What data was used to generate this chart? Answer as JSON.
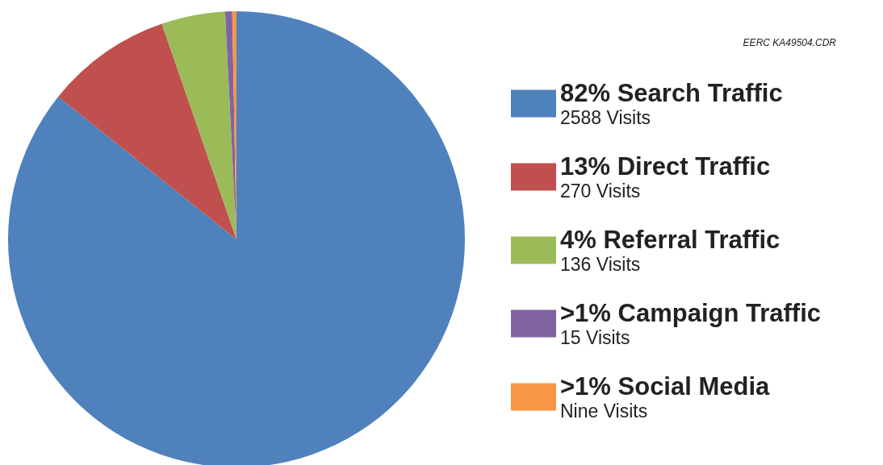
{
  "chart_data": {
    "type": "pie",
    "categories": [
      "82% Search Traffic",
      "13% Direct Traffic",
      "4% Referral Traffic",
      ">1% Campaign Traffic",
      ">1% Social Media"
    ],
    "values": [
      2588,
      270,
      136,
      15,
      9
    ],
    "value_labels": [
      "2588 Visits",
      "270 Visits",
      "136 Visits",
      "15 Visits",
      "Nine Visits"
    ],
    "colors": [
      "#4f81bd",
      "#c0504d",
      "#9bbb59",
      "#8064a2",
      "#f79646"
    ],
    "legend": "right",
    "annotations": [
      "EERC KA49504.CDR"
    ]
  }
}
